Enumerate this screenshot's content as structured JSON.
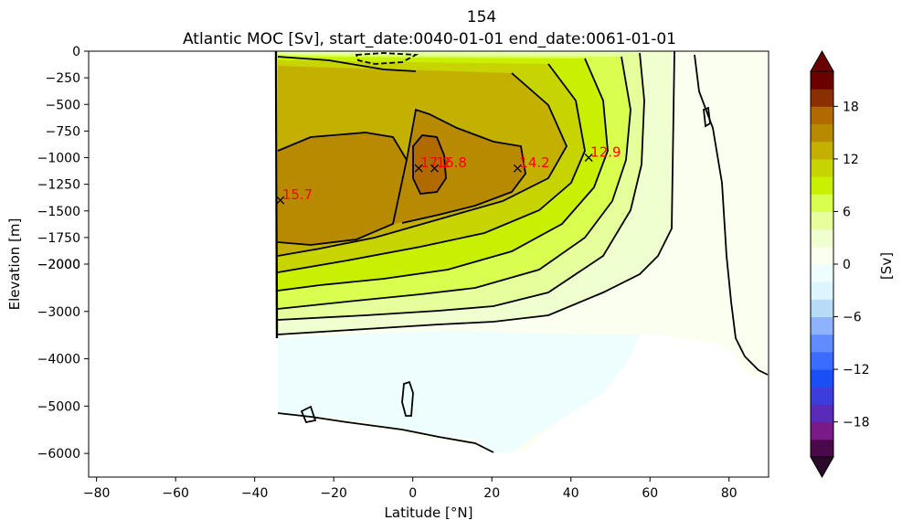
{
  "chart_data": {
    "type": "contour",
    "title_line1": "154",
    "title_line2": "Atlantic MOC [Sv], start_date:0040-01-01 end_date:0061-01-01",
    "xlabel": "Latitude [°N]",
    "ylabel": "Elevation [m]",
    "xlim": [
      -82,
      90
    ],
    "x_ticks": [
      -80,
      -60,
      -40,
      -20,
      0,
      20,
      40,
      60,
      80
    ],
    "y_ticks_upper": [
      0,
      -250,
      -500,
      -750,
      -1000,
      -1250,
      -1500,
      -1750,
      -2000
    ],
    "y_ticks_lower": [
      -2000,
      -3000,
      -4000,
      -5000,
      -6000
    ],
    "colorbar": {
      "label": "[Sv]",
      "ticks": [
        18,
        12,
        6,
        0,
        -6,
        -12,
        -18
      ],
      "range": [
        -22,
        22
      ],
      "levels": [
        -22,
        -20,
        -18,
        -16,
        -14,
        -12,
        -10,
        -8,
        -6,
        -4,
        -2,
        0,
        2,
        4,
        6,
        8,
        10,
        12,
        14,
        16,
        18,
        20,
        22
      ],
      "colors": [
        "#4a0a4a",
        "#7a1a86",
        "#5a2ab8",
        "#3d3ddc",
        "#1a4ef6",
        "#3a6cff",
        "#5f8cff",
        "#8fb2ff",
        "#b8dcf7",
        "#dcf6ff",
        "#eefeff",
        "#fbfff0",
        "#f0ffd0",
        "#e4ff9c",
        "#d8ff50",
        "#c8f000",
        "#c8d400",
        "#c4b000",
        "#b88a00",
        "#b06a00",
        "#8a3000",
        "#6a0000"
      ]
    },
    "annotations": [
      {
        "label": "15.7",
        "lat": -33.5,
        "depth": -1400
      },
      {
        "label": "17.2",
        "lat": 1.5,
        "depth": -1100
      },
      {
        "label": "16.8",
        "lat": 5.5,
        "depth": -1100
      },
      {
        "label": "14.2",
        "lat": 26.5,
        "depth": -1100
      },
      {
        "label": "12.9",
        "lat": 44.5,
        "depth": -1000
      }
    ],
    "annotation_color": "#ff0000"
  }
}
